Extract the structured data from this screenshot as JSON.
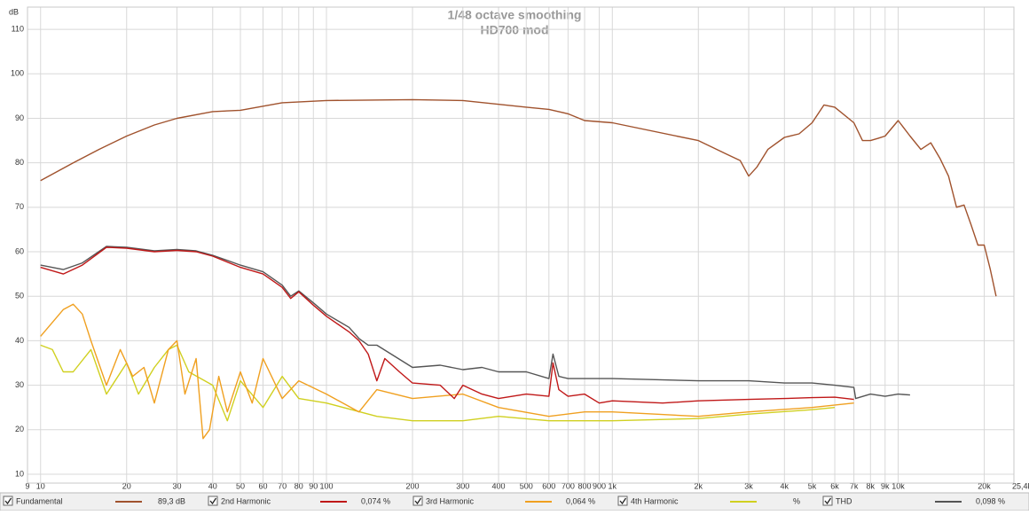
{
  "chart_data": {
    "type": "line",
    "title": "1/48 octave smoothing",
    "subtitle": "HD700 mod",
    "y_label": "dB",
    "log_x": true,
    "grid": true,
    "xlim": [
      9,
      25400
    ],
    "ylim": [
      8,
      115
    ],
    "yticks": [
      10,
      20,
      30,
      40,
      50,
      60,
      70,
      80,
      90,
      100,
      110
    ],
    "xticks": [
      9,
      10,
      20,
      30,
      40,
      50,
      60,
      70,
      80,
      90,
      100,
      200,
      300,
      400,
      500,
      600,
      700,
      800,
      900,
      {
        "value": 1000,
        "label": "1k"
      },
      {
        "value": 2000,
        "label": "2k"
      },
      {
        "value": 3000,
        "label": "3k"
      },
      {
        "value": 4000,
        "label": "4k"
      },
      {
        "value": 5000,
        "label": "5k"
      },
      {
        "value": 6000,
        "label": "6k"
      },
      {
        "value": 7000,
        "label": "7k"
      },
      {
        "value": 8000,
        "label": "8k"
      },
      {
        "value": 9000,
        "label": "9k"
      },
      {
        "value": 10000,
        "label": "10k"
      },
      {
        "value": 20000,
        "label": "20k"
      },
      {
        "value": 25400,
        "label": "25,4k Hz"
      }
    ],
    "series": [
      {
        "name": "Fundamental",
        "reading": "89,3 dB",
        "color": "#a0522d",
        "x": [
          10,
          13,
          16,
          20,
          25,
          30,
          40,
          50,
          70,
          100,
          200,
          300,
          500,
          600,
          700,
          800,
          1000,
          2000,
          2500,
          2800,
          3000,
          3200,
          3500,
          4000,
          4500,
          5000,
          5500,
          6000,
          7000,
          7500,
          8000,
          8500,
          9000,
          10000,
          11000,
          12000,
          13000,
          14000,
          15000,
          16000,
          17000,
          18000,
          19000,
          20000,
          21000,
          22000
        ],
        "values": [
          76,
          80,
          83,
          86,
          88.5,
          90,
          91.5,
          91.8,
          93.5,
          94,
          94.2,
          94,
          92.5,
          92,
          91,
          89.5,
          89,
          85,
          82,
          80.5,
          77,
          79,
          83,
          85.7,
          86.5,
          89,
          93,
          92.5,
          89,
          85,
          85,
          85.5,
          86,
          89.5,
          86,
          83,
          84.5,
          81,
          77,
          70,
          70.5,
          66,
          61.5,
          61.5,
          56,
          50
        ]
      },
      {
        "name": "2nd Harmonic",
        "reading": "0,074 %",
        "color": "#c01818",
        "x": [
          10,
          12,
          14,
          17,
          20,
          25,
          30,
          35,
          40,
          50,
          60,
          70,
          75,
          80,
          90,
          100,
          120,
          130,
          140,
          150,
          160,
          180,
          200,
          250,
          280,
          300,
          350,
          400,
          500,
          600,
          620,
          650,
          700,
          800,
          900,
          1000,
          1500,
          2000,
          3000,
          4000,
          5000,
          6000,
          7000
        ],
        "values": [
          56.5,
          55,
          57,
          61,
          60.8,
          60,
          60.3,
          60,
          59,
          56.5,
          55,
          52,
          49.5,
          51,
          48,
          45.5,
          42,
          40,
          37,
          31,
          36,
          33,
          30.5,
          30,
          27,
          30,
          28,
          27,
          28,
          27.5,
          35,
          29,
          27.5,
          28,
          26,
          26.5,
          26,
          26.5,
          26.8,
          27,
          27.2,
          27.3,
          26.8
        ]
      },
      {
        "name": "3rd Harmonic",
        "reading": "0,064 %",
        "color": "#f0a020",
        "x": [
          10,
          12,
          13,
          14,
          15,
          17,
          19,
          21,
          23,
          25,
          28,
          30,
          32,
          35,
          37,
          39,
          42,
          45,
          50,
          55,
          60,
          70,
          80,
          100,
          130,
          150,
          200,
          300,
          400,
          600,
          800,
          1000,
          2000,
          3000,
          5000,
          7000
        ],
        "values": [
          41,
          47,
          48.2,
          46,
          40,
          30,
          38,
          32,
          34,
          26,
          38,
          40,
          28,
          36,
          18,
          20,
          32,
          24,
          33,
          26,
          36,
          27,
          31,
          28,
          24,
          29,
          27,
          28,
          25,
          23,
          24,
          24,
          23,
          24,
          25,
          26
        ]
      },
      {
        "name": "4th Harmonic",
        "reading": "%",
        "color": "#d0d020",
        "x": [
          10,
          11,
          12,
          13,
          15,
          17,
          20,
          22,
          25,
          28,
          30,
          33,
          40,
          45,
          50,
          60,
          70,
          80,
          100,
          150,
          200,
          300,
          400,
          600,
          1000,
          2000,
          3000,
          5000,
          6000
        ],
        "values": [
          39,
          38,
          33,
          33,
          38,
          28,
          35,
          28,
          34,
          38,
          39,
          33,
          30,
          22,
          31,
          25,
          32,
          27,
          26,
          23,
          22,
          22,
          23,
          22,
          22,
          22.5,
          23.5,
          24.5,
          25
        ]
      },
      {
        "name": "THD",
        "reading": "0,098 %",
        "color": "#555555",
        "x": [
          10,
          12,
          14,
          17,
          20,
          25,
          30,
          35,
          40,
          50,
          60,
          70,
          75,
          80,
          90,
          100,
          120,
          130,
          140,
          150,
          200,
          250,
          300,
          350,
          400,
          500,
          600,
          620,
          650,
          700,
          800,
          1000,
          2000,
          3000,
          4000,
          5000,
          6000,
          7000,
          7100,
          8000,
          9000,
          10000,
          11000
        ],
        "values": [
          57,
          56,
          57.5,
          61.2,
          61,
          60.2,
          60.5,
          60.2,
          59.2,
          57,
          55.5,
          52.5,
          50,
          51.2,
          48.5,
          46,
          43,
          40.5,
          39,
          39,
          34,
          34.5,
          33.5,
          34,
          33,
          33,
          31.5,
          37,
          32,
          31.5,
          31.5,
          31.5,
          31,
          31,
          30.5,
          30.5,
          30,
          29.5,
          27,
          28,
          27.5,
          28,
          27.8
        ]
      }
    ]
  }
}
